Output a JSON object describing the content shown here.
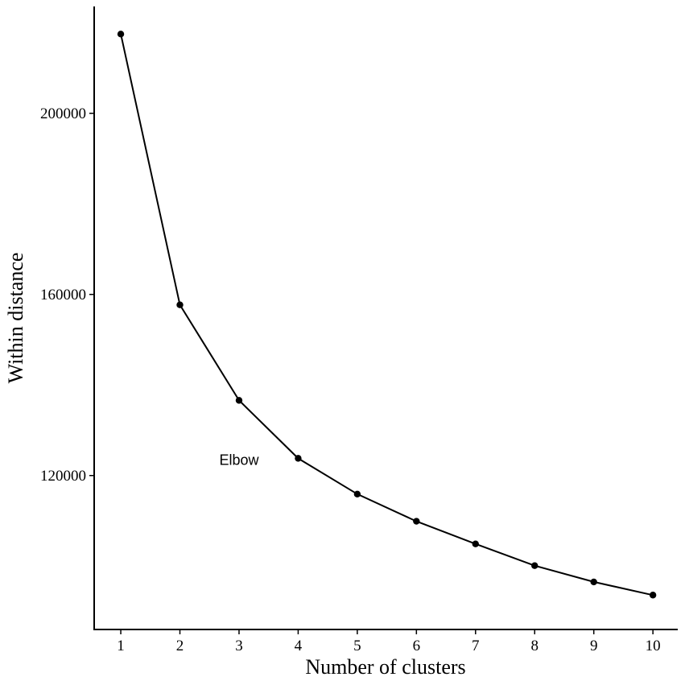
{
  "chart_data": {
    "type": "line",
    "title": "",
    "xlabel": "Number of clusters",
    "ylabel": "Within distance",
    "x": [
      1,
      2,
      3,
      4,
      5,
      6,
      7,
      8,
      9,
      10
    ],
    "series": [
      {
        "values": [
          217500,
          157700,
          136600,
          123800,
          115900,
          109900,
          104900,
          100100,
          96500,
          93600
        ]
      }
    ],
    "xticks": [
      1,
      2,
      3,
      4,
      5,
      6,
      7,
      8,
      9,
      10
    ],
    "xtick_labels": [
      "1",
      "2",
      "3",
      "4",
      "5",
      "6",
      "7",
      "8",
      "9",
      "10"
    ],
    "yticks": [
      120000,
      160000,
      200000
    ],
    "ytick_labels": [
      "120000",
      "160000",
      "200000"
    ],
    "xlim": [
      0.55,
      10.42
    ],
    "ylim": [
      86000,
      223600
    ],
    "grid": false,
    "legend": "none",
    "annotations": [
      {
        "text": "Elbow",
        "x": 3.0,
        "y": 123600
      }
    ],
    "colors": {
      "line": "#000000",
      "points": "#000000",
      "axes": "#000000"
    }
  }
}
